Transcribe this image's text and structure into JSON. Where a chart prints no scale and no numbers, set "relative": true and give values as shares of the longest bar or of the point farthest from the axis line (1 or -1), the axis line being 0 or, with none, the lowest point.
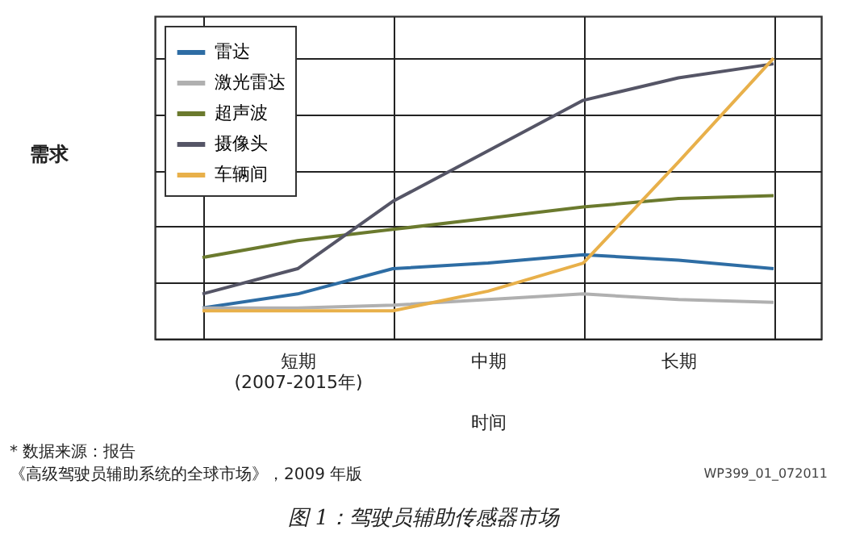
{
  "chart_data": {
    "type": "line",
    "relative": true,
    "title": "图 1：驾驶员辅助传感器市场",
    "xlabel": "时间",
    "ylabel": "需求",
    "annotations": [
      "* 数据来源：报告",
      "《高级驾驶员辅助系统的全球市场》，2009 年版",
      "WP399_01_072011"
    ],
    "categories": [
      null,
      "短期\n(2007-2015年)",
      null,
      "中期",
      null,
      "长期",
      null
    ],
    "grid": true,
    "legend": "top left",
    "marker": "none",
    "line_style": "solid",
    "series": [
      {
        "name": "雷达",
        "color": "#2e6da4",
        "values": [
          0.11,
          0.16,
          0.25,
          0.27,
          0.3,
          0.28,
          0.25
        ]
      },
      {
        "name": "激光雷达",
        "color": "#b0b0b0",
        "values": [
          0.11,
          0.11,
          0.12,
          0.14,
          0.16,
          0.14,
          0.13
        ]
      },
      {
        "name": "超声波",
        "color": "#6b7a2e",
        "values": [
          0.29,
          0.35,
          0.39,
          0.43,
          0.47,
          0.5,
          0.51
        ]
      },
      {
        "name": "摄像头",
        "color": "#555566",
        "values": [
          0.16,
          0.25,
          0.49,
          0.67,
          0.85,
          0.93,
          0.98
        ]
      },
      {
        "name": "车辆间",
        "color": "#e8b04a",
        "values": [
          0.1,
          0.1,
          0.1,
          0.17,
          0.27,
          0.63,
          1
        ]
      }
    ]
  }
}
